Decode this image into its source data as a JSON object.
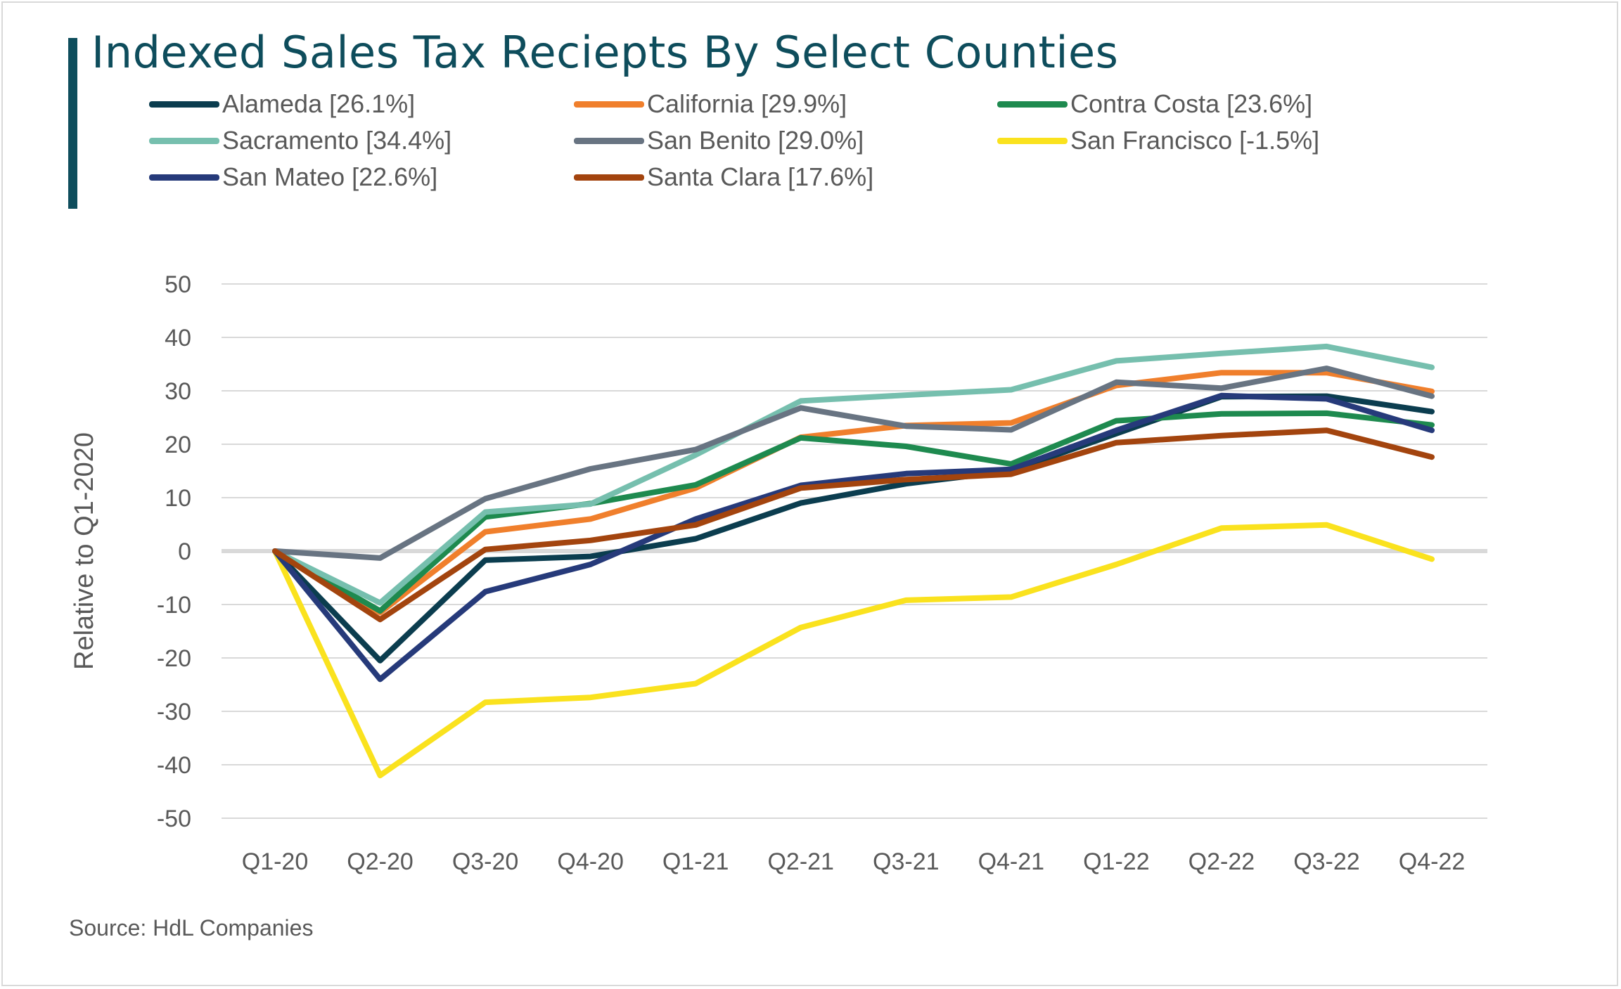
{
  "chart_data": {
    "type": "line",
    "title": "Indexed Sales Tax Reciepts By Select Counties",
    "xlabel": "",
    "ylabel": "Relative to Q1-2020",
    "source": "Source: HdL Companies",
    "ylim": [
      -50,
      50
    ],
    "yticks": [
      50,
      40,
      30,
      20,
      10,
      0,
      -10,
      -20,
      -30,
      -40,
      -50
    ],
    "grid": true,
    "legend_position": "top",
    "categories": [
      "Q1-20",
      "Q2-20",
      "Q3-20",
      "Q4-20",
      "Q1-21",
      "Q2-21",
      "Q3-21",
      "Q4-21",
      "Q1-22",
      "Q2-22",
      "Q3-22",
      "Q4-22"
    ],
    "series": [
      {
        "name": "Alameda [26.1%]",
        "color": "#0b3d4f",
        "values": [
          0,
          -20.5,
          -1.7,
          -1.0,
          2.3,
          9.0,
          12.6,
          15.0,
          22.0,
          28.9,
          29.0,
          26.1
        ]
      },
      {
        "name": "California [29.9%]",
        "color": "#f07f2c",
        "values": [
          0,
          -11.5,
          3.6,
          6.0,
          11.8,
          21.3,
          23.5,
          24.0,
          31.0,
          33.4,
          33.4,
          29.9
        ]
      },
      {
        "name": "Contra Costa [23.6%]",
        "color": "#1e8a4f",
        "values": [
          0,
          -11.2,
          6.4,
          8.9,
          12.4,
          21.2,
          19.6,
          16.3,
          24.4,
          25.7,
          25.8,
          23.6
        ]
      },
      {
        "name": "Sacramento [34.4%]",
        "color": "#76bfae",
        "values": [
          0,
          -9.7,
          7.3,
          8.8,
          18.0,
          28.1,
          29.2,
          30.2,
          35.6,
          37.0,
          38.3,
          34.4
        ]
      },
      {
        "name": "San Benito [29.0%]",
        "color": "#687482",
        "values": [
          0,
          -1.3,
          9.8,
          15.4,
          19.0,
          26.8,
          23.4,
          22.7,
          31.6,
          30.5,
          34.2,
          29.0
        ]
      },
      {
        "name": "San Francisco [-1.5%]",
        "color": "#fae21e",
        "values": [
          0,
          -42.0,
          -28.3,
          -27.4,
          -24.8,
          -14.3,
          -9.2,
          -8.6,
          -2.5,
          4.3,
          4.9,
          -1.5
        ]
      },
      {
        "name": "San Mateo [22.6%]",
        "color": "#263a7a",
        "values": [
          0,
          -24.0,
          -7.6,
          -2.5,
          6.0,
          12.3,
          14.5,
          15.3,
          22.6,
          29.1,
          28.5,
          22.6
        ]
      },
      {
        "name": "Santa Clara [17.6%]",
        "color": "#a3440e",
        "values": [
          0,
          -12.8,
          0.3,
          2.0,
          4.9,
          11.8,
          13.4,
          14.4,
          20.3,
          21.6,
          22.6,
          17.6
        ]
      }
    ]
  }
}
